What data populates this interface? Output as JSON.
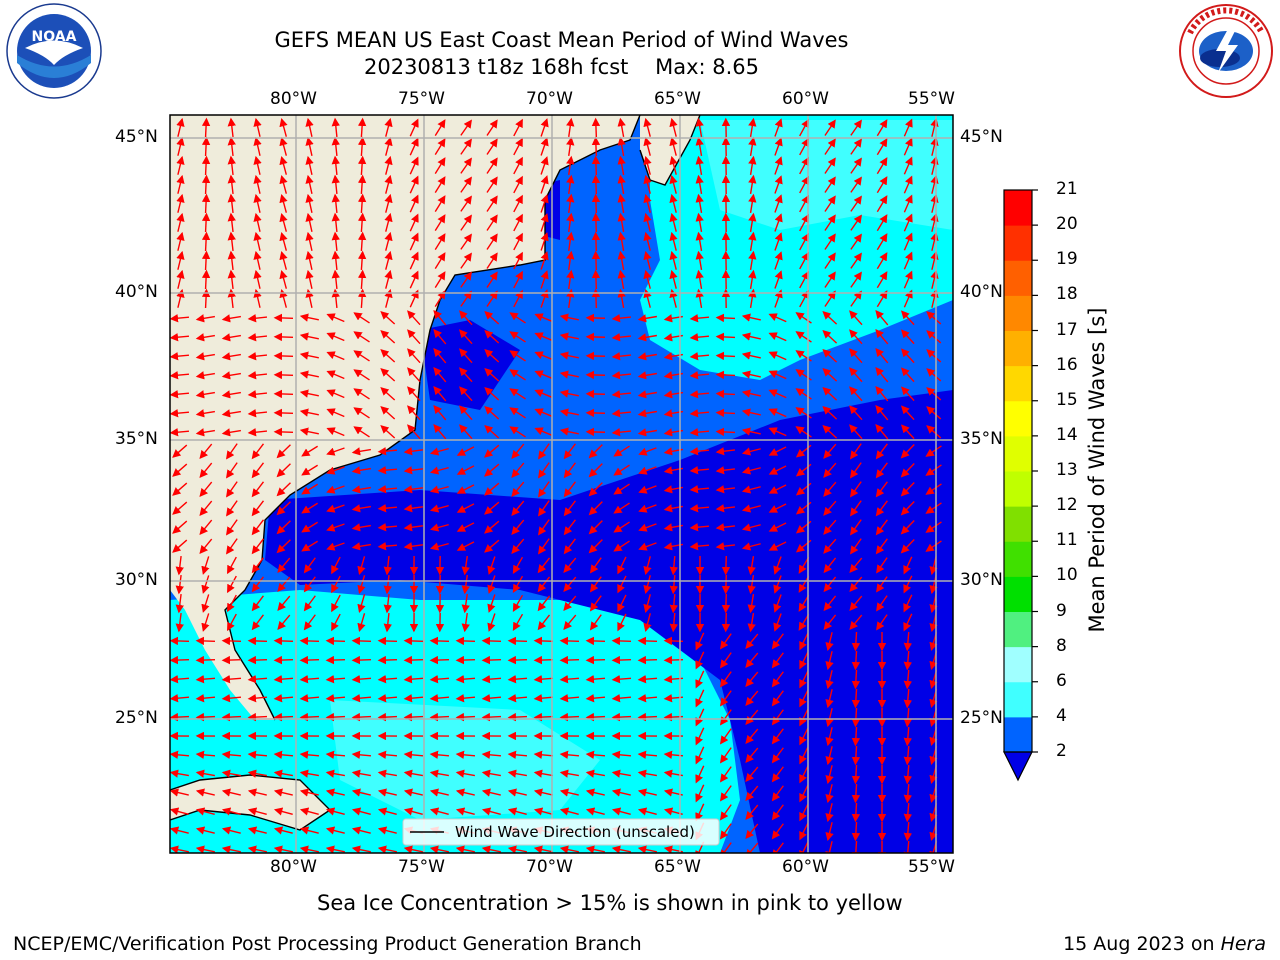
{
  "header": {
    "title_line1": "GEFS MEAN US East Coast Mean Period of Wind Waves",
    "title_line2": "20230813 t18z 168h fcst    Max: 8.65"
  },
  "logos": {
    "left": {
      "icon": "noaa-logo",
      "text": "NOAA",
      "ring_text": "NATIONAL OCEANIC AND ATMOSPHERIC ADMINISTRATION · U.S. DEPARTMENT OF COMMERCE"
    },
    "right": {
      "icon": "nws-logo",
      "ring_text": "NATIONAL WEATHER SERVICE"
    }
  },
  "map": {
    "lon_labels": [
      "80°W",
      "75°W",
      "70°W",
      "65°W",
      "60°W",
      "55°W"
    ],
    "lat_labels": [
      "45°N",
      "40°N",
      "35°N",
      "30°N",
      "25°N"
    ],
    "legend_label": "Wind Wave Direction (unscaled)",
    "colors": {
      "land": "#efecdb",
      "ocean_2_4": "#0064ff",
      "ocean_lt2": "#0000e6",
      "ocean_4_6": "#00ffff",
      "ocean_6_8": "#40ffff",
      "arrow": "#ff0000",
      "grid": "#b0b0b0"
    }
  },
  "colorbar": {
    "label": "Mean Period of Wind Waves [s]",
    "ticks": [
      "2",
      "4",
      "6",
      "8",
      "9",
      "10",
      "11",
      "12",
      "13",
      "14",
      "15",
      "16",
      "17",
      "18",
      "19",
      "20",
      "21"
    ],
    "colors": [
      "#0064ff",
      "#00ffff",
      "#40ffff",
      "#a0ffff",
      "#50f080",
      "#00e000",
      "#40e000",
      "#80e000",
      "#c0ff00",
      "#e0ff00",
      "#ffff00",
      "#ffd800",
      "#ffb000",
      "#ff8800",
      "#ff6000",
      "#ff3000",
      "#ff0000"
    ],
    "under_color": "#0000e6"
  },
  "notes": {
    "sea_ice": "Sea Ice Concentration > 15% is shown in pink to yellow",
    "producer": "NCEP/EMC/Verification Post Processing Product Generation Branch",
    "date": "15 Aug 2023 on ",
    "machine": "Hera"
  }
}
